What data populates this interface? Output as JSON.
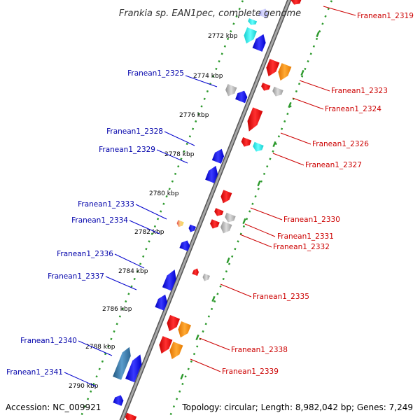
{
  "title": "Frankia sp. EAN1pec, complete genome",
  "accession": "Accession: NC_009921",
  "topology": "Topology: circular; Length: 8,982,042 bp; Genes: 7,249",
  "colors": {
    "backbone": "#888888",
    "forward_grid": "#2e9a2e",
    "reverse_grid": "#2e9a2e",
    "forward_label": "#0000aa",
    "reverse_label": "#cc0000",
    "gene_blue": "#1a1aee",
    "gene_red": "#ee1111",
    "gene_orange": "#ff8800",
    "gene_cyan": "#22eeee",
    "gene_gray": "#b0b0b0",
    "gene_steel": "#3a78a8"
  },
  "scale_ticks": [
    {
      "label": "2772 kbp"
    },
    {
      "label": "2774 kbp"
    },
    {
      "label": "2776 kbp"
    },
    {
      "label": "2778 kbp"
    },
    {
      "label": "2780 kbp"
    },
    {
      "label": "2782 kbp"
    },
    {
      "label": "2784 kbp"
    },
    {
      "label": "2786 kbp"
    },
    {
      "label": "2788 kbp"
    },
    {
      "label": "2790 kbp"
    }
  ],
  "forward_labels": [
    {
      "name": "Franean1_2325"
    },
    {
      "name": "Franean1_2328"
    },
    {
      "name": "Franean1_2329"
    },
    {
      "name": "Franean1_2333"
    },
    {
      "name": "Franean1_2334"
    },
    {
      "name": "Franean1_2336"
    },
    {
      "name": "Franean1_2337"
    },
    {
      "name": "Franean1_2340"
    },
    {
      "name": "Franean1_2341"
    }
  ],
  "reverse_labels": [
    {
      "name": "Franean1_2319"
    },
    {
      "name": "Franean1_2323"
    },
    {
      "name": "Franean1_2324"
    },
    {
      "name": "Franean1_2326"
    },
    {
      "name": "Franean1_2327"
    },
    {
      "name": "Franean1_2330"
    },
    {
      "name": "Franean1_2331"
    },
    {
      "name": "Franean1_2332"
    },
    {
      "name": "Franean1_2335"
    },
    {
      "name": "Franean1_2338"
    },
    {
      "name": "Franean1_2339"
    }
  ]
}
